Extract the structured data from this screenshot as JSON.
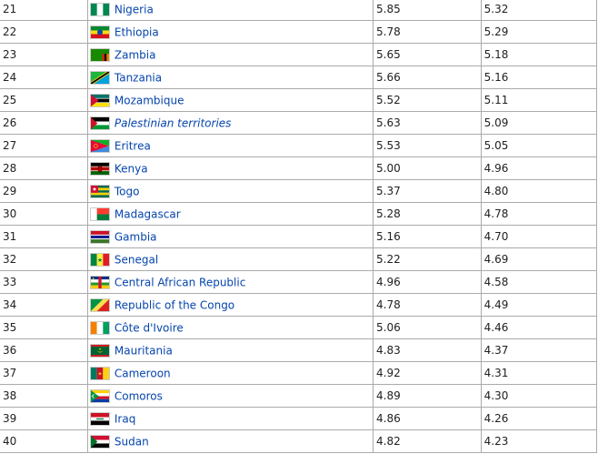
{
  "rows": [
    {
      "rank": "21",
      "country": "Nigeria",
      "flag_icon": "nigeria-flag-icon",
      "value1": "5.85",
      "value2": "5.32"
    },
    {
      "rank": "22",
      "country": "Ethiopia",
      "flag_icon": "ethiopia-flag-icon",
      "value1": "5.78",
      "value2": "5.29"
    },
    {
      "rank": "23",
      "country": "Zambia",
      "flag_icon": "zambia-flag-icon",
      "value1": "5.65",
      "value2": "5.18"
    },
    {
      "rank": "24",
      "country": "Tanzania",
      "flag_icon": "tanzania-flag-icon",
      "value1": "5.66",
      "value2": "5.16"
    },
    {
      "rank": "25",
      "country": "Mozambique",
      "flag_icon": "mozambique-flag-icon",
      "value1": "5.52",
      "value2": "5.11"
    },
    {
      "rank": "26",
      "country": "Palestinian territories",
      "flag_icon": "palestine-flag-icon",
      "value1": "5.63",
      "value2": "5.09"
    },
    {
      "rank": "27",
      "country": "Eritrea",
      "flag_icon": "eritrea-flag-icon",
      "value1": "5.53",
      "value2": "5.05"
    },
    {
      "rank": "28",
      "country": "Kenya",
      "flag_icon": "kenya-flag-icon",
      "value1": "5.00",
      "value2": "4.96"
    },
    {
      "rank": "29",
      "country": "Togo",
      "flag_icon": "togo-flag-icon",
      "value1": "5.37",
      "value2": "4.80"
    },
    {
      "rank": "30",
      "country": "Madagascar",
      "flag_icon": "madagascar-flag-icon",
      "value1": "5.28",
      "value2": "4.78"
    },
    {
      "rank": "31",
      "country": "Gambia",
      "flag_icon": "gambia-flag-icon",
      "value1": "5.16",
      "value2": "4.70"
    },
    {
      "rank": "32",
      "country": "Senegal",
      "flag_icon": "senegal-flag-icon",
      "value1": "5.22",
      "value2": "4.69"
    },
    {
      "rank": "33",
      "country": "Central African Republic",
      "flag_icon": "central-african-republic-flag-icon",
      "value1": "4.96",
      "value2": "4.58"
    },
    {
      "rank": "34",
      "country": "Republic of the Congo",
      "flag_icon": "congo-flag-icon",
      "value1": "4.78",
      "value2": "4.49"
    },
    {
      "rank": "35",
      "country": "Côte d'Ivoire",
      "flag_icon": "cote-divoire-flag-icon",
      "value1": "5.06",
      "value2": "4.46"
    },
    {
      "rank": "36",
      "country": "Mauritania",
      "flag_icon": "mauritania-flag-icon",
      "value1": "4.83",
      "value2": "4.37"
    },
    {
      "rank": "37",
      "country": "Cameroon",
      "flag_icon": "cameroon-flag-icon",
      "value1": "4.92",
      "value2": "4.31"
    },
    {
      "rank": "38",
      "country": "Comoros",
      "flag_icon": "comoros-flag-icon",
      "value1": "4.89",
      "value2": "4.30"
    },
    {
      "rank": "39",
      "country": "Iraq",
      "flag_icon": "iraq-flag-icon",
      "value1": "4.86",
      "value2": "4.26"
    },
    {
      "rank": "40",
      "country": "Sudan",
      "flag_icon": "sudan-flag-icon",
      "value1": "4.82",
      "value2": "4.23"
    }
  ],
  "colors": {
    "link": "#0645ad",
    "text": "#202122",
    "border": "#aaaaaa"
  }
}
